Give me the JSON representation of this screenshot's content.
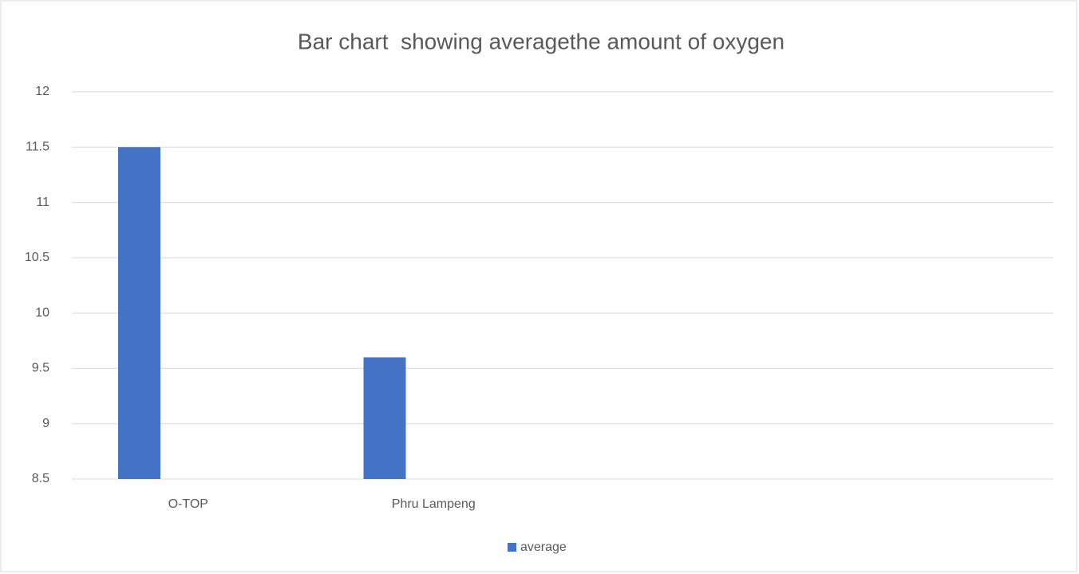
{
  "chart_data": {
    "type": "bar",
    "title": "Bar chart  showing averagethe amount of oxygen",
    "categories": [
      "O-TOP",
      "Phru Lampeng",
      null,
      null
    ],
    "series": [
      {
        "name": "average",
        "color": "#4472c4",
        "values": [
          11.5,
          9.6,
          null,
          null
        ]
      }
    ],
    "ylim": [
      8.5,
      12
    ],
    "yticks": [
      8.5,
      9,
      9.5,
      10,
      10.5,
      11,
      11.5,
      12
    ],
    "grid": true,
    "legend": "bottom"
  }
}
